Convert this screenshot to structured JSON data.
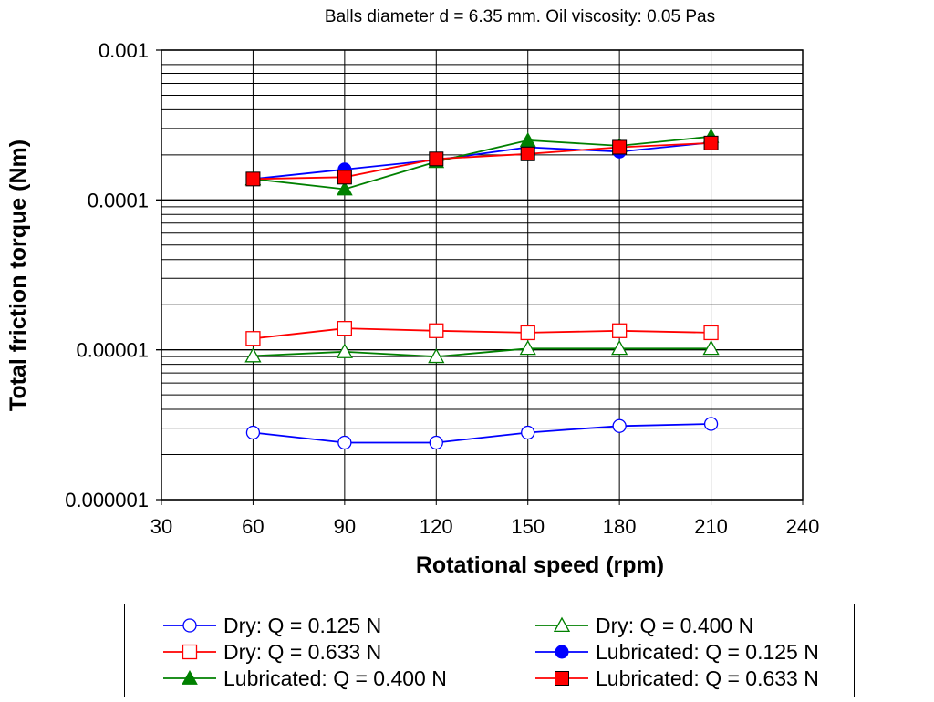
{
  "chart_data": {
    "type": "line",
    "title": "Balls diameter d = 6.35 mm.  Oil viscosity: 0.05 Pas",
    "xlabel": "Rotational speed (rpm)",
    "ylabel": "Total friction torque (Nm)",
    "x_scale": "linear",
    "y_scale": "log",
    "xlim": [
      30,
      240
    ],
    "ylim": [
      1e-06,
      0.001
    ],
    "x_ticks": [
      30,
      60,
      90,
      120,
      150,
      180,
      210,
      240
    ],
    "x_tick_labels": [
      "30",
      "60",
      "90",
      "120",
      "150",
      "180",
      "210",
      "240"
    ],
    "y_ticks": [
      1e-06,
      1e-05,
      0.0001,
      0.001
    ],
    "y_tick_labels": [
      "0.000001",
      "0.00001",
      "0.0001",
      "0.001"
    ],
    "grid": true,
    "legend_position": "bottom",
    "x": [
      60,
      90,
      120,
      150,
      180,
      210
    ],
    "series": [
      {
        "name": "Dry: Q = 0.125 N",
        "color": "#0000ff",
        "marker": "circle",
        "filled": false,
        "values": [
          2.8e-06,
          2.4e-06,
          2.4e-06,
          2.8e-06,
          3.1e-06,
          3.2e-06
        ]
      },
      {
        "name": "Dry: Q = 0.400 N",
        "color": "#008000",
        "marker": "triangle",
        "filled": false,
        "values": [
          9.1e-06,
          9.7e-06,
          9e-06,
          1.02e-05,
          1.02e-05,
          1.02e-05
        ]
      },
      {
        "name": "Dry: Q = 0.633 N",
        "color": "#ff0000",
        "marker": "square",
        "filled": false,
        "values": [
          1.19e-05,
          1.39e-05,
          1.34e-05,
          1.3e-05,
          1.34e-05,
          1.3e-05
        ]
      },
      {
        "name": "Lubricated: Q = 0.125 N",
        "color": "#0000ff",
        "marker": "circle",
        "filled": true,
        "values": [
          0.000138,
          0.00016,
          0.000185,
          0.000225,
          0.00021,
          0.000242
        ]
      },
      {
        "name": "Lubricated: Q = 0.400 N",
        "color": "#008000",
        "marker": "triangle",
        "filled": true,
        "values": [
          0.000138,
          0.000118,
          0.00018,
          0.00025,
          0.00023,
          0.000265
        ]
      },
      {
        "name": "Lubricated: Q = 0.633 N",
        "color": "#ff0000",
        "marker": "square",
        "filled": true,
        "values": [
          0.000138,
          0.000142,
          0.000188,
          0.000203,
          0.000225,
          0.00024
        ]
      }
    ]
  }
}
